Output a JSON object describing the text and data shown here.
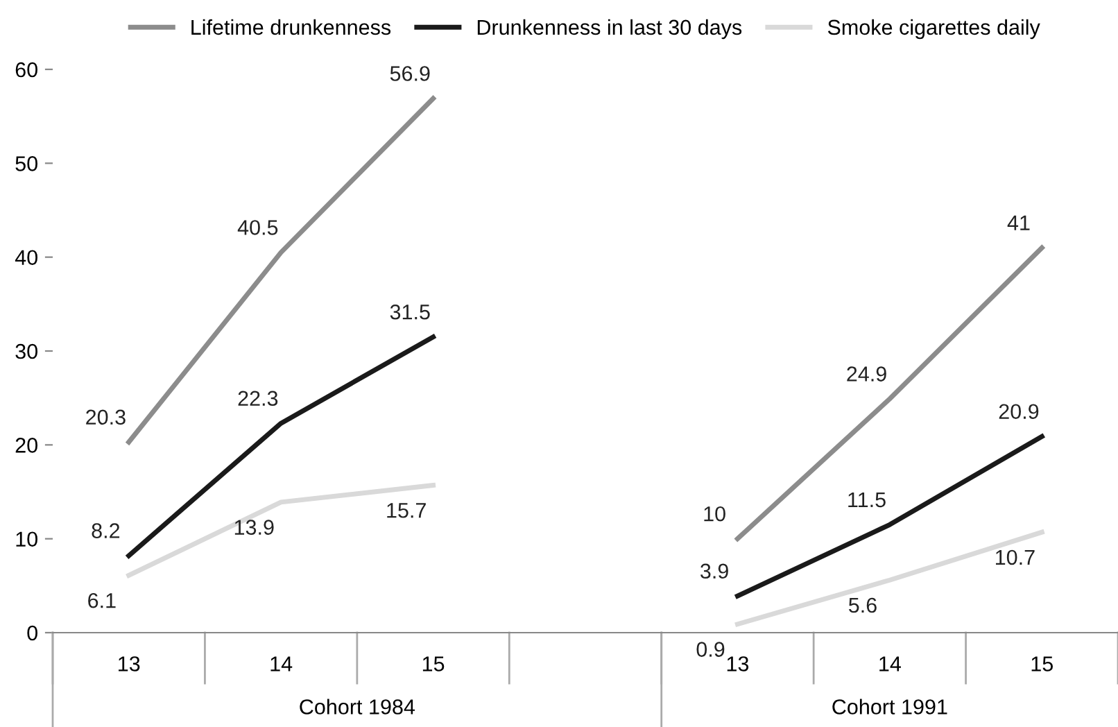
{
  "chart_data": {
    "type": "line",
    "categories": [
      "13",
      "14",
      "15",
      null,
      "13",
      "14",
      "15"
    ],
    "series": [
      {
        "name": "Lifetime drunkenness",
        "color": "#8c8c8c",
        "values": [
          20.3,
          40.5,
          56.9,
          null,
          10,
          24.9,
          41
        ]
      },
      {
        "name": "Drunkenness in last 30 days",
        "color": "#1a1a1a",
        "values": [
          8.2,
          22.3,
          31.5,
          null,
          3.9,
          11.5,
          20.9
        ]
      },
      {
        "name": "Smoke cigarettes daily",
        "color": "#d9d9d9",
        "values": [
          6.1,
          13.9,
          15.7,
          null,
          0.9,
          5.6,
          10.7
        ]
      }
    ],
    "ylim": [
      0,
      60
    ],
    "yticks": [
      0,
      10,
      20,
      30,
      40,
      50,
      60
    ],
    "annotations": [
      "Cohort 1984",
      "Cohort 1991"
    ],
    "data_labels": true,
    "legend": "top",
    "grid": false,
    "marker": "none",
    "line_style": "solid"
  }
}
